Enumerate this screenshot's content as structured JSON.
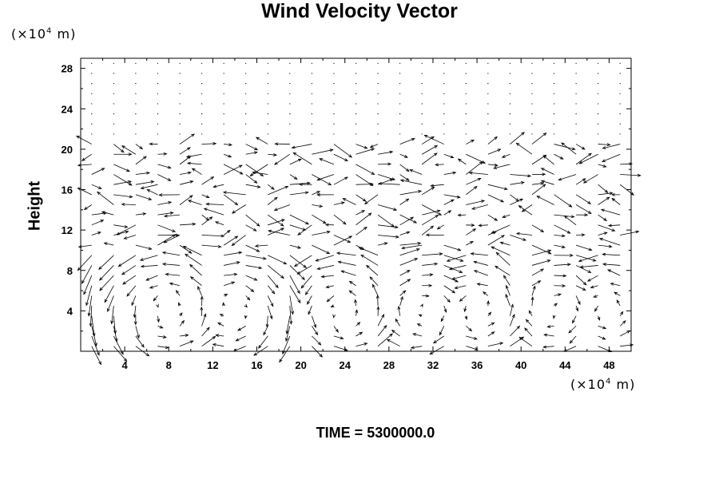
{
  "chart_data": {
    "type": "quiver",
    "title": "Wind Velocity Vector",
    "ylabel": "Height",
    "xlabel": "",
    "unit_prefix": "(×10",
    "unit_exp": "4",
    "unit_suffix": " m)",
    "time_label": "TIME = 5300000.0",
    "xlim": [
      0,
      50
    ],
    "ylim": [
      0,
      29
    ],
    "x_ticks": [
      4,
      8,
      12,
      16,
      20,
      24,
      28,
      32,
      36,
      40,
      44,
      48
    ],
    "y_ticks": [
      4,
      8,
      12,
      16,
      20,
      24,
      28
    ],
    "grid": false,
    "vector_field": {
      "x_spacing": 1,
      "y_spacing": 1,
      "region_calm": {
        "y_min": 21,
        "y_max": 29,
        "description": "near-zero vectors (dots)"
      },
      "region_westward_jet": {
        "y": 20,
        "u": -1.6
      },
      "region_turbulent": {
        "y_min": 10,
        "y_max": 19
      },
      "region_rolls": {
        "y_min": 0,
        "y_max": 9,
        "roll_centers_x": [
          8,
          14,
          24,
          31,
          36,
          43,
          48
        ]
      }
    }
  }
}
